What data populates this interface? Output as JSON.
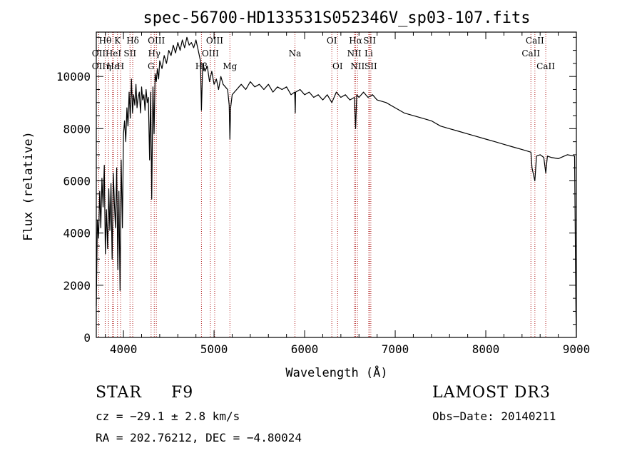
{
  "chart_data": {
    "type": "line",
    "title": "spec-56700-HD133531S052346V_sp03-107.fits",
    "xlabel": "Wavelength (Å)",
    "ylabel": "Flux (relative)",
    "xlim": [
      3700,
      9000
    ],
    "ylim": [
      0,
      11700
    ],
    "xticks": [
      4000,
      5000,
      6000,
      7000,
      8000,
      9000
    ],
    "yticks": [
      0,
      2000,
      4000,
      6000,
      8000,
      10000
    ],
    "line_color": "#000000",
    "marker_color": "#b22222",
    "series": [
      {
        "name": "flux",
        "x": [
          3700,
          3712,
          3725,
          3738,
          3750,
          3762,
          3775,
          3788,
          3800,
          3812,
          3825,
          3838,
          3850,
          3862,
          3875,
          3888,
          3900,
          3912,
          3925,
          3938,
          3950,
          3962,
          3975,
          3988,
          4000,
          4012,
          4025,
          4038,
          4050,
          4062,
          4075,
          4088,
          4100,
          4112,
          4125,
          4138,
          4150,
          4162,
          4175,
          4188,
          4200,
          4212,
          4225,
          4238,
          4250,
          4262,
          4275,
          4288,
          4300,
          4312,
          4325,
          4338,
          4350,
          4362,
          4375,
          4388,
          4400,
          4425,
          4450,
          4475,
          4500,
          4525,
          4550,
          4575,
          4600,
          4625,
          4650,
          4675,
          4700,
          4725,
          4750,
          4775,
          4800,
          4825,
          4850,
          4861,
          4875,
          4900,
          4925,
          4950,
          4975,
          5000,
          5025,
          5050,
          5075,
          5100,
          5125,
          5150,
          5167,
          5175,
          5183,
          5200,
          5225,
          5250,
          5275,
          5300,
          5350,
          5400,
          5450,
          5500,
          5550,
          5600,
          5650,
          5700,
          5750,
          5800,
          5850,
          5890,
          5896,
          5900,
          5950,
          6000,
          6050,
          6100,
          6150,
          6200,
          6250,
          6300,
          6350,
          6400,
          6450,
          6500,
          6550,
          6563,
          6575,
          6600,
          6650,
          6700,
          6750,
          6800,
          6900,
          7000,
          7100,
          7200,
          7300,
          7400,
          7500,
          7600,
          7700,
          7800,
          7900,
          8000,
          8100,
          8200,
          8300,
          8400,
          8450,
          8498,
          8510,
          8542,
          8560,
          8600,
          8640,
          8662,
          8680,
          8720,
          8800,
          8900,
          8980,
          8995,
          9000
        ],
        "y": [
          1200,
          4500,
          3800,
          5600,
          4200,
          6100,
          5000,
          6600,
          3200,
          4900,
          3400,
          5700,
          4100,
          5900,
          3000,
          6300,
          5100,
          4200,
          6500,
          2600,
          5600,
          1800,
          6800,
          4200,
          7800,
          8300,
          7500,
          8800,
          8100,
          9400,
          8400,
          9900,
          8600,
          9300,
          8900,
          9700,
          8800,
          9200,
          9400,
          8600,
          9600,
          9100,
          9300,
          8700,
          9500,
          9000,
          9200,
          6800,
          9400,
          5300,
          9600,
          7800,
          10100,
          9800,
          10300,
          9900,
          10600,
          10300,
          10800,
          10500,
          11000,
          10800,
          11200,
          10900,
          11300,
          11000,
          11400,
          11100,
          11500,
          11200,
          11300,
          11100,
          11400,
          11000,
          10600,
          8700,
          10500,
          10200,
          10400,
          9800,
          10200,
          9700,
          9900,
          9500,
          10000,
          9700,
          9600,
          9500,
          8900,
          7600,
          8800,
          9300,
          9400,
          9500,
          9600,
          9700,
          9500,
          9800,
          9600,
          9700,
          9500,
          9700,
          9400,
          9600,
          9500,
          9600,
          9300,
          9400,
          8600,
          9400,
          9500,
          9300,
          9400,
          9200,
          9300,
          9100,
          9300,
          9000,
          9400,
          9200,
          9300,
          9100,
          9200,
          8000,
          9300,
          9200,
          9400,
          9200,
          9300,
          9100,
          9000,
          8800,
          8600,
          8500,
          8400,
          8300,
          8100,
          8000,
          7900,
          7800,
          7700,
          7600,
          7500,
          7400,
          7300,
          7200,
          7150,
          7100,
          6500,
          6000,
          6950,
          7000,
          6900,
          6300,
          6950,
          6900,
          6850,
          7000,
          6950,
          1000,
          0
        ]
      }
    ],
    "spectral_lines": [
      {
        "label": "Hθ",
        "x": 3798,
        "row": 0
      },
      {
        "label": "OII",
        "x": 3727,
        "row": 1
      },
      {
        "label": "OII",
        "x": 3727,
        "row": 2
      },
      {
        "label": "K",
        "x": 3934,
        "row": 0
      },
      {
        "label": "Hδ",
        "x": 4102,
        "row": 0
      },
      {
        "label": "HeI",
        "x": 3889,
        "row": 1
      },
      {
        "label": "Hε",
        "x": 3880,
        "row": 2
      },
      {
        "label": "η",
        "x": 3835,
        "row": 2
      },
      {
        "label": "SII",
        "x": 4072,
        "row": 1
      },
      {
        "label": "H",
        "x": 3968,
        "row": 2
      },
      {
        "label": "OIII",
        "x": 4363,
        "row": 0
      },
      {
        "label": "Hγ",
        "x": 4340,
        "row": 1
      },
      {
        "label": "G",
        "x": 4305,
        "row": 2
      },
      {
        "label": "OIII",
        "x": 5007,
        "row": 0
      },
      {
        "label": "OIII",
        "x": 4959,
        "row": 1
      },
      {
        "label": "Hβ",
        "x": 4861,
        "row": 2
      },
      {
        "label": "Mg",
        "x": 5175,
        "row": 2
      },
      {
        "label": "Na",
        "x": 5893,
        "row": 1
      },
      {
        "label": "OI",
        "x": 6300,
        "row": 0
      },
      {
        "label": "OI",
        "x": 6364,
        "row": 2
      },
      {
        "label": "Hα",
        "x": 6563,
        "row": 0
      },
      {
        "label": "SII",
        "x": 6717,
        "row": 0
      },
      {
        "label": "NII",
        "x": 6548,
        "row": 1
      },
      {
        "label": "Li",
        "x": 6708,
        "row": 1
      },
      {
        "label": "NII",
        "x": 6584,
        "row": 2
      },
      {
        "label": "SII",
        "x": 6731,
        "row": 2
      },
      {
        "label": "CaII",
        "x": 8542,
        "row": 0
      },
      {
        "label": "CaII",
        "x": 8498,
        "row": 1
      },
      {
        "label": "CaII",
        "x": 8662,
        "row": 2
      }
    ]
  },
  "info": {
    "object_class": "STAR",
    "subclass": "F9",
    "survey": "LAMOST DR3",
    "cz": "cz = −29.1 ± 2.8 km/s",
    "obs_date": "Obs−Date: 20140211",
    "coords": "RA = 202.76212, DEC =  −4.80024"
  }
}
